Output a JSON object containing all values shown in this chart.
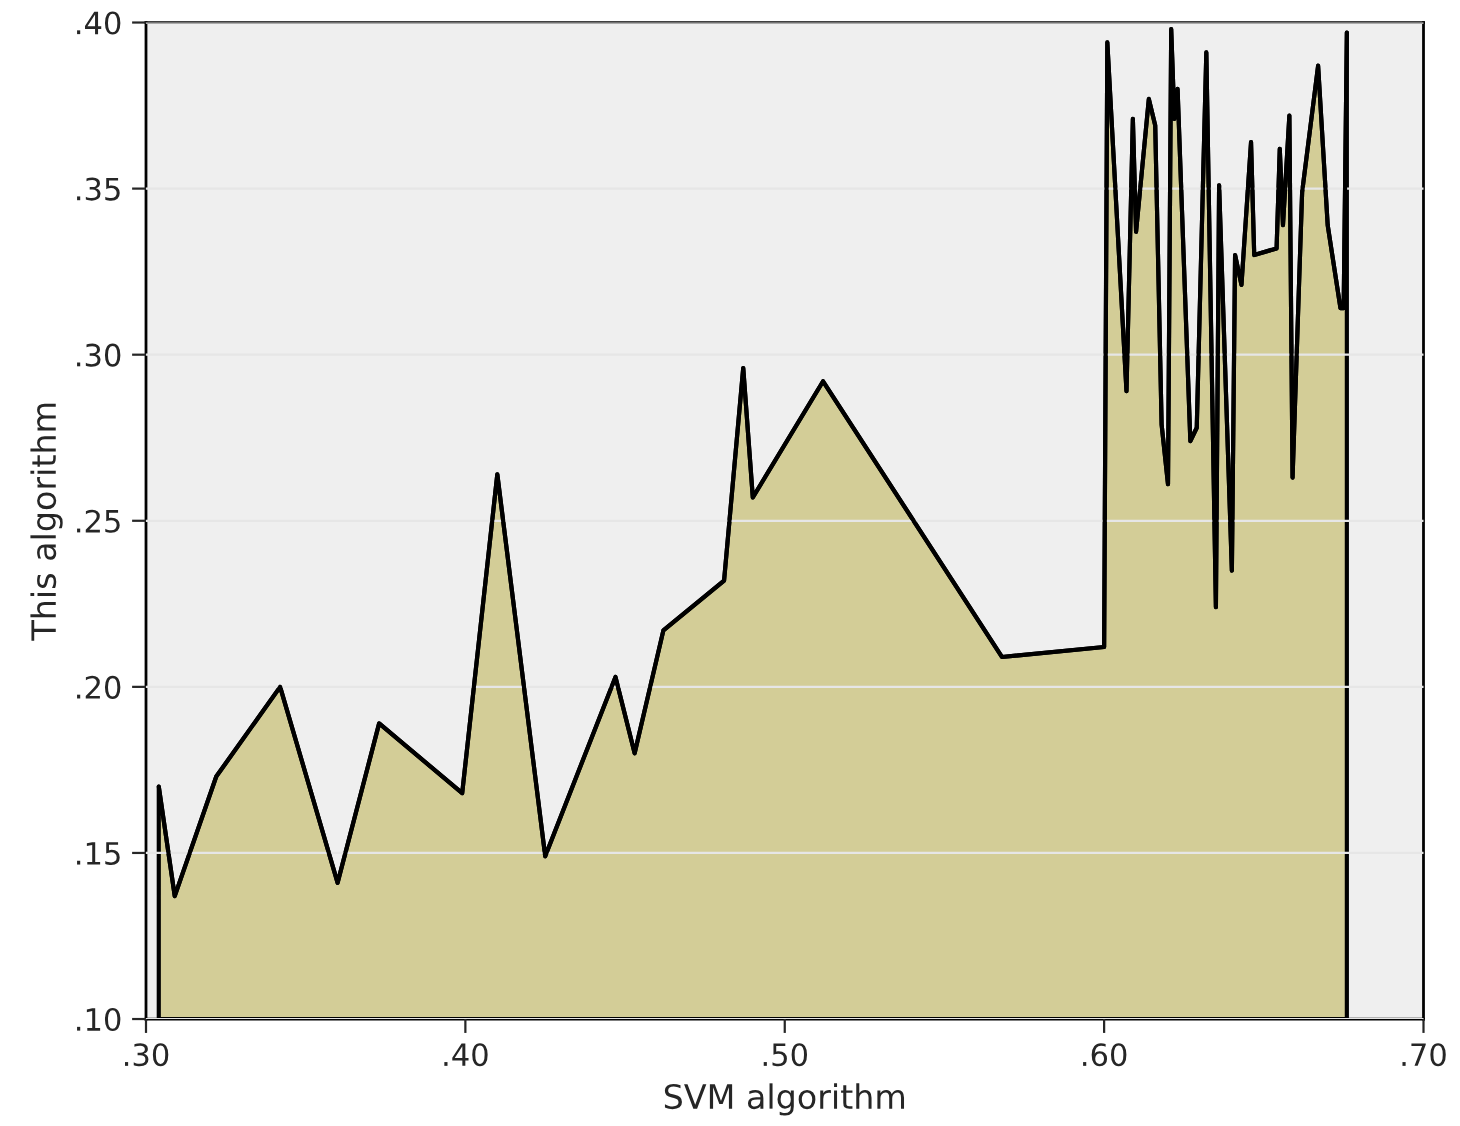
{
  "chart_data": {
    "type": "area",
    "xlabel": "SVM algorithm",
    "ylabel": "This algorithm",
    "x": [
      0.304,
      0.309,
      0.322,
      0.342,
      0.36,
      0.373,
      0.399,
      0.41,
      0.425,
      0.447,
      0.453,
      0.462,
      0.481,
      0.487,
      0.49,
      0.512,
      0.568,
      0.6,
      0.601,
      0.607,
      0.609,
      0.61,
      0.614,
      0.616,
      0.618,
      0.62,
      0.621,
      0.622,
      0.623,
      0.627,
      0.629,
      0.632,
      0.635,
      0.636,
      0.64,
      0.641,
      0.643,
      0.646,
      0.647,
      0.654,
      0.655,
      0.656,
      0.658,
      0.659,
      0.662,
      0.667,
      0.67,
      0.674,
      0.675,
      0.676
    ],
    "series": [
      {
        "color": "#d3cd97",
        "values": [
          0.17,
          0.137,
          0.173,
          0.2,
          0.141,
          0.189,
          0.168,
          0.264,
          0.149,
          0.203,
          0.18,
          0.217,
          0.232,
          0.296,
          0.257,
          0.292,
          0.209,
          0.212,
          0.394,
          0.289,
          0.371,
          0.337,
          0.377,
          0.369,
          0.279,
          0.261,
          0.398,
          0.371,
          0.38,
          0.274,
          0.278,
          0.391,
          0.224,
          0.351,
          0.235,
          0.33,
          0.321,
          0.364,
          0.33,
          0.332,
          0.362,
          0.339,
          0.372,
          0.263,
          0.349,
          0.387,
          0.339,
          0.314,
          0.314,
          0.397
        ]
      }
    ],
    "xlim": [
      0.3,
      0.7
    ],
    "ylim": [
      0.1,
      0.4
    ],
    "xticks": [
      {
        "value": 0.3,
        "label": ".30"
      },
      {
        "value": 0.4,
        "label": ".40"
      },
      {
        "value": 0.5,
        "label": ".50"
      },
      {
        "value": 0.6,
        "label": ".60"
      },
      {
        "value": 0.7,
        "label": ".70"
      }
    ],
    "yticks": [
      {
        "value": 0.1,
        "label": ".10"
      },
      {
        "value": 0.15,
        "label": ".15"
      },
      {
        "value": 0.2,
        "label": ".20"
      },
      {
        "value": 0.25,
        "label": ".25"
      },
      {
        "value": 0.3,
        "label": ".30"
      },
      {
        "value": 0.35,
        "label": ".35"
      },
      {
        "value": 0.4,
        "label": ".40"
      }
    ],
    "grid": "y"
  }
}
